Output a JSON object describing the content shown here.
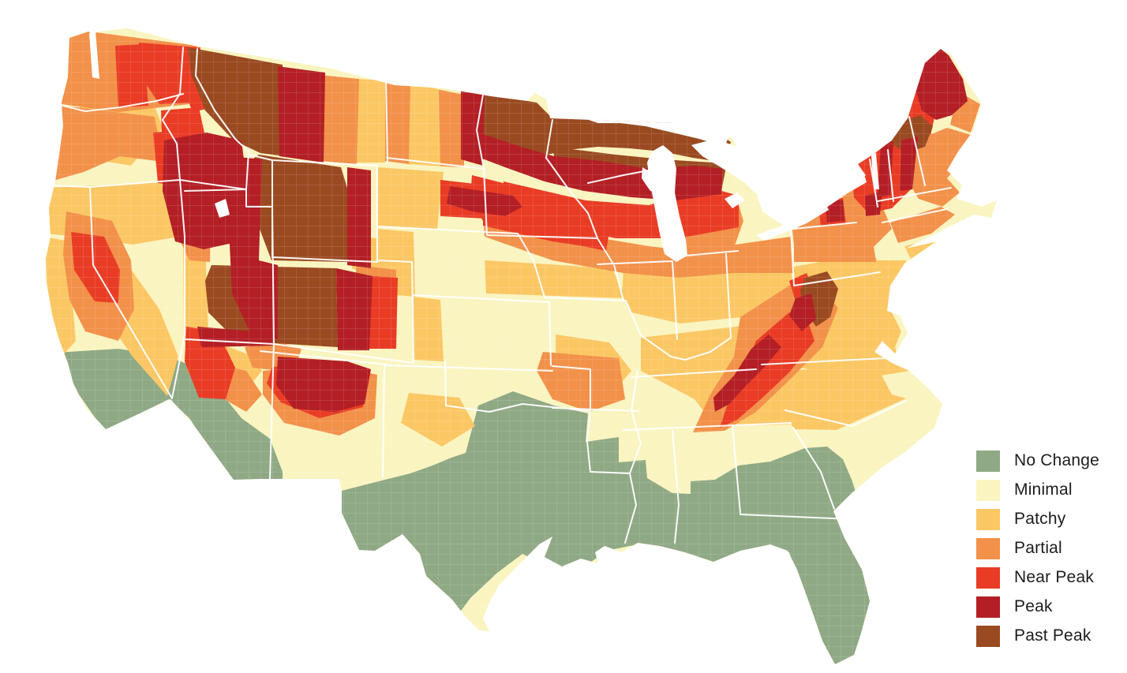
{
  "page": {
    "background": "#ffffff"
  },
  "legend": {
    "items": [
      {
        "key": "no-change",
        "label": "No Change",
        "color": "#8FA985"
      },
      {
        "key": "minimal",
        "label": "Minimal",
        "color": "#FAF4C0"
      },
      {
        "key": "patchy",
        "label": "Patchy",
        "color": "#FBC764"
      },
      {
        "key": "partial",
        "label": "Partial",
        "color": "#F2914A"
      },
      {
        "key": "near-peak",
        "label": "Near Peak",
        "color": "#E93C25"
      },
      {
        "key": "peak",
        "label": "Peak",
        "color": "#B31F25"
      },
      {
        "key": "past-peak",
        "label": "Past Peak",
        "color": "#9A4A21"
      }
    ]
  },
  "map_data": {
    "type": "choropleth-map",
    "subject": "United States county-level fall foliage progression",
    "regions": [
      {
        "area": "South and central Texas, Gulf Coast, Louisiana, southern Mississippi-Alabama-Georgia, Florida, coastal South Carolina, southern Arizona, southern California",
        "status": "No Change"
      },
      {
        "area": "Central-southern Plains (Nebraska, Kansas, Oklahoma, Texas panhandle), lower Mississippi Valley, mid-South, Atlantic coastal plain, Nevada basins, California Central Valley, southern New Mexico",
        "status": "Minimal"
      },
      {
        "area": "Dakotas, western Nevada border, northern California coast, western Utah, northern Arizona, Iowa-Illinois-Ohio belt, Kentucky and east Tennessee, Virginia piedmont, southern Pennsylvania, New Jersey and Delmarva, Carolina piedmont",
        "status": "Patchy"
      },
      {
        "area": "Washington and Oregon lowlands, eastern Montana edge, upper-midwest belt from Iowa through southern Wisconsin-Michigan, New York, Ozarks, broad Appalachian band, southern New England coast",
        "status": "Partial"
      },
      {
        "area": "Northeast Washington, Cascades, Sierra Nevada, western Idaho, northeast Oregon, southwest Utah, central Minnesota-Iowa belt, Adirondacks and Catskills, interior New England, Blue Ridge front",
        "status": "Near Peak"
      },
      {
        "area": "Central Idaho, eastern Montana band, Colorado Rockies, northern New Mexico, Black Hills, eastern North Dakota strip, northern Wisconsin-Michigan band, northern Maine, Vermont-New Hampshire mountains, southern Appalachian spine",
        "status": "Peak"
      },
      {
        "area": "Western Montana, Wyoming, central Utah and western Colorado high country, northern Minnesota, Wisconsin northwoods, Upper Peninsula of Michigan, northern Vermont-New Hampshire pockets, West Virginia highlands",
        "status": "Past Peak"
      }
    ]
  }
}
